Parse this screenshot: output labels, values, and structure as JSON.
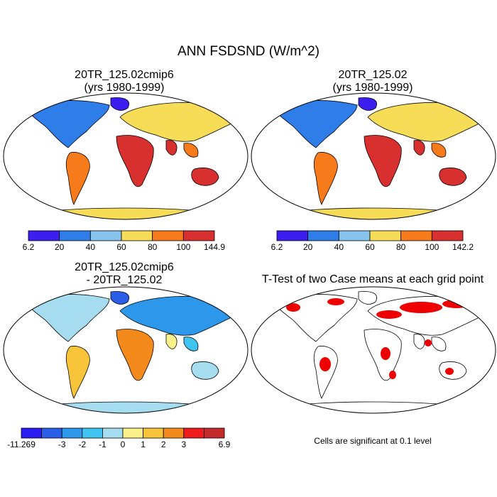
{
  "figure_title": "ANN FSDSND (W/m^2)",
  "panels": [
    {
      "title_line1": "20TR_125.02cmip6",
      "title_line2": "(yrs 1980-1999)",
      "colorbar": {
        "colors": [
          "#3d1ef0",
          "#2e7de9",
          "#86c4eb",
          "#f6dc57",
          "#f77b1a",
          "#d8302e"
        ],
        "labels": [
          "6.2",
          "20",
          "40",
          "60",
          "80",
          "100",
          "144.9"
        ]
      }
    },
    {
      "title_line1": "20TR_125.02",
      "title_line2": "(yrs 1980-1999)",
      "colorbar": {
        "colors": [
          "#3d1ef0",
          "#2e7de9",
          "#86c4eb",
          "#f6dc57",
          "#f77b1a",
          "#d8302e"
        ],
        "labels": [
          "6.2",
          "20",
          "40",
          "60",
          "80",
          "100",
          "142.2"
        ]
      }
    },
    {
      "title_line1": "20TR_125.02cmip6",
      "title_line2": "- 20TR_125.02",
      "colorbar": {
        "colors": [
          "#2b1cf2",
          "#2a5ee8",
          "#2d97ec",
          "#3fc3f0",
          "#a6dcf0",
          "#fbf18a",
          "#f8c53a",
          "#f48a1c",
          "#ee1c1c",
          "#c42a2a"
        ],
        "labels": [
          "-11.269",
          "",
          "-3",
          "-2",
          "-1",
          "0",
          "1",
          "2",
          "3",
          "",
          "6.9"
        ]
      }
    },
    {
      "title_line1": "T-Test of two Case means at each grid point",
      "title_line2": "",
      "note": "Cells are significant at 0.1 level"
    }
  ]
}
